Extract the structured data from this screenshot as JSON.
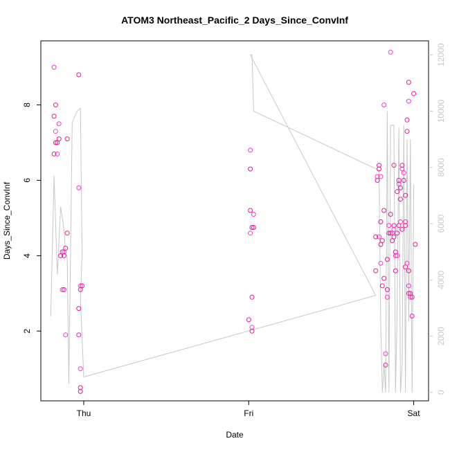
{
  "chart_data": {
    "type": "scatter",
    "title": "ATOM3 Northeast_Pacific_2 Days_Since_ConvInf",
    "xlabel": "Date",
    "ylabel": "Days_Since_ConvInf",
    "x_ticks": [
      {
        "label": "Thu",
        "day": 1.0
      },
      {
        "label": "Fri",
        "day": 2.0
      },
      {
        "label": "Sat",
        "day": 3.0
      }
    ],
    "xlim": [
      0.74,
      3.09
    ],
    "ylim": [
      0.15,
      9.7
    ],
    "y_ticks": [
      2,
      4,
      6,
      8
    ],
    "y2lim": [
      -300,
      12500
    ],
    "y2_ticks": [
      0,
      2000,
      4000,
      6000,
      8000,
      10000,
      12000
    ],
    "grid": false,
    "point_color": "#e8179a",
    "point_color_alt": "#ff33cc",
    "line_color": "#c8c8c8",
    "points": [
      [
        0.82,
        9.0
      ],
      [
        0.83,
        8.0
      ],
      [
        0.82,
        7.7
      ],
      [
        0.83,
        7.3
      ],
      [
        0.83,
        7.0
      ],
      [
        0.84,
        7.0
      ],
      [
        0.85,
        7.5
      ],
      [
        0.85,
        7.1
      ],
      [
        0.82,
        6.7
      ],
      [
        0.84,
        6.7
      ],
      [
        0.86,
        4.0
      ],
      [
        0.87,
        4.1
      ],
      [
        0.88,
        4.1
      ],
      [
        0.89,
        4.2
      ],
      [
        0.88,
        4.0
      ],
      [
        0.87,
        3.1
      ],
      [
        0.88,
        3.1
      ],
      [
        0.9,
        4.6
      ],
      [
        0.89,
        1.9
      ],
      [
        0.9,
        7.1
      ],
      [
        0.97,
        8.8
      ],
      [
        0.97,
        5.8
      ],
      [
        0.97,
        2.6
      ],
      [
        0.98,
        3.1
      ],
      [
        0.98,
        3.2
      ],
      [
        0.99,
        3.2
      ],
      [
        0.97,
        1.9
      ],
      [
        0.98,
        1.0
      ],
      [
        0.98,
        0.5
      ],
      [
        0.98,
        0.4
      ],
      [
        2.01,
        6.8
      ],
      [
        2.01,
        6.3
      ],
      [
        2.01,
        5.2
      ],
      [
        2.03,
        5.1
      ],
      [
        2.02,
        4.75
      ],
      [
        2.03,
        4.75
      ],
      [
        2.01,
        4.6
      ],
      [
        2.02,
        2.9
      ],
      [
        2.0,
        2.3
      ],
      [
        2.02,
        2.1
      ],
      [
        2.02,
        2.0
      ],
      [
        2.78,
        6.0
      ],
      [
        2.78,
        6.1
      ],
      [
        2.79,
        6.3
      ],
      [
        2.79,
        6.4
      ],
      [
        2.8,
        6.1
      ],
      [
        2.8,
        4.9
      ],
      [
        2.77,
        4.5
      ],
      [
        2.79,
        4.5
      ],
      [
        2.8,
        4.3
      ],
      [
        2.81,
        4.4
      ],
      [
        2.82,
        8.0
      ],
      [
        2.82,
        5.2
      ],
      [
        2.77,
        3.6
      ],
      [
        2.8,
        3.8
      ],
      [
        2.81,
        3.2
      ],
      [
        2.82,
        3.4
      ],
      [
        2.83,
        1.4
      ],
      [
        2.83,
        1.1
      ],
      [
        2.84,
        3.1
      ],
      [
        2.84,
        2.9
      ],
      [
        2.84,
        3.9
      ],
      [
        2.85,
        4.6
      ],
      [
        2.85,
        4.8
      ],
      [
        2.86,
        4.6
      ],
      [
        2.86,
        5.1
      ],
      [
        2.87,
        4.6
      ],
      [
        2.87,
        4.4
      ],
      [
        2.88,
        4.8
      ],
      [
        2.88,
        4.7
      ],
      [
        2.88,
        4.5
      ],
      [
        2.88,
        6.4
      ],
      [
        2.89,
        4.0
      ],
      [
        2.89,
        4.1
      ],
      [
        2.89,
        3.6
      ],
      [
        2.9,
        4.0
      ],
      [
        2.9,
        4.6
      ],
      [
        2.9,
        5.7
      ],
      [
        2.91,
        5.9
      ],
      [
        2.91,
        6.0
      ],
      [
        2.91,
        4.8
      ],
      [
        2.92,
        4.9
      ],
      [
        2.92,
        5.5
      ],
      [
        2.92,
        5.8
      ],
      [
        2.93,
        6.3
      ],
      [
        2.93,
        6.4
      ],
      [
        2.93,
        4.7
      ],
      [
        2.94,
        6.2
      ],
      [
        2.94,
        6.0
      ],
      [
        2.95,
        5.6
      ],
      [
        2.95,
        4.9
      ],
      [
        2.95,
        4.8
      ],
      [
        2.95,
        3.7
      ],
      [
        2.96,
        3.8
      ],
      [
        2.96,
        7.3
      ],
      [
        2.96,
        7.6
      ],
      [
        2.97,
        8.1
      ],
      [
        2.97,
        8.6
      ],
      [
        2.97,
        3.6
      ],
      [
        2.97,
        3.2
      ],
      [
        2.97,
        3.0
      ],
      [
        2.98,
        3.0
      ],
      [
        2.98,
        2.9
      ],
      [
        2.99,
        2.9
      ],
      [
        2.99,
        2.4
      ],
      [
        2.99,
        2.4
      ],
      [
        3.0,
        8.3
      ],
      [
        3.01,
        4.3
      ],
      [
        2.86,
        9.4
      ]
    ],
    "series_right": [
      [
        0.8,
        2700
      ],
      [
        0.82,
        7700
      ],
      [
        0.84,
        4200
      ],
      [
        0.86,
        6600
      ],
      [
        0.88,
        5800
      ],
      [
        0.89,
        5000
      ],
      [
        0.9,
        4800
      ],
      [
        0.91,
        300
      ],
      [
        0.93,
        9600
      ],
      [
        0.96,
        10000
      ],
      [
        0.98,
        10100
      ],
      [
        0.99,
        4900
      ],
      [
        0.98,
        3300
      ],
      [
        1.0,
        550
      ],
      [
        2.77,
        3450
      ],
      [
        2.01,
        12000
      ],
      [
        2.02,
        12000
      ],
      [
        2.03,
        10000
      ],
      [
        2.79,
        7900
      ],
      [
        2.8,
        2500
      ],
      [
        2.81,
        0
      ],
      [
        2.82,
        1000
      ],
      [
        2.83,
        0
      ],
      [
        2.84,
        10000
      ],
      [
        2.85,
        0
      ],
      [
        2.86,
        9500
      ],
      [
        2.88,
        9500
      ],
      [
        2.89,
        0
      ],
      [
        2.9,
        3000
      ],
      [
        2.91,
        9400
      ],
      [
        2.92,
        0
      ],
      [
        2.93,
        1000
      ],
      [
        2.94,
        9500
      ],
      [
        2.95,
        0
      ],
      [
        2.96,
        9000
      ],
      [
        2.97,
        2500
      ],
      [
        2.98,
        9000
      ],
      [
        2.99,
        0
      ],
      [
        3.0,
        7400
      ]
    ]
  }
}
